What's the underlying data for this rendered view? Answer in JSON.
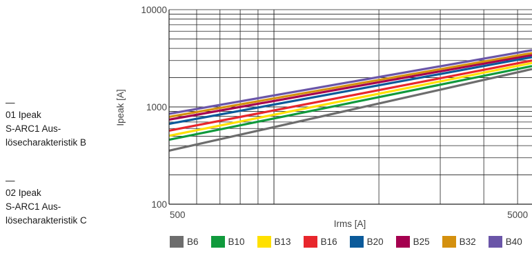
{
  "captions": [
    {
      "dash": "—",
      "lines": [
        "01 Ipeak",
        "S-ARC1 Aus-",
        "lösecharakteristik B"
      ]
    },
    {
      "dash": "—",
      "lines": [
        "02 Ipeak",
        "S-ARC1 Aus-",
        "lösecharakteristik C"
      ]
    }
  ],
  "chart_data": {
    "type": "line",
    "xlabel": "Irms [A]",
    "ylabel": "Ipeak [A]",
    "xscale": "log",
    "yscale": "log",
    "xlim": [
      500,
      5500
    ],
    "ylim": [
      100,
      10000
    ],
    "x_ticks": [
      {
        "value": 500,
        "label": "500"
      },
      {
        "value": 5000,
        "label": "5000"
      }
    ],
    "y_ticks": [
      {
        "value": 10000,
        "label": "10000"
      },
      {
        "value": 1000,
        "label": "1000"
      },
      {
        "value": 100,
        "label": "100"
      }
    ],
    "grid": true,
    "legend_position": "bottom",
    "series": [
      {
        "name": "B6",
        "color": "#6d6d6d",
        "x": [
          500,
          5500
        ],
        "y": [
          355,
          2450
        ]
      },
      {
        "name": "B10",
        "color": "#109a3c",
        "x": [
          500,
          5500
        ],
        "y": [
          460,
          2630
        ]
      },
      {
        "name": "B13",
        "color": "#ffe000",
        "x": [
          500,
          5500
        ],
        "y": [
          505,
          2830
        ]
      },
      {
        "name": "B16",
        "color": "#e8262c",
        "x": [
          500,
          5500
        ],
        "y": [
          570,
          3000
        ]
      },
      {
        "name": "B20",
        "color": "#0b5a9a",
        "x": [
          500,
          5500
        ],
        "y": [
          670,
          3250
        ]
      },
      {
        "name": "B25",
        "color": "#a5004f",
        "x": [
          500,
          5500
        ],
        "y": [
          740,
          3420
        ]
      },
      {
        "name": "B32",
        "color": "#d4900e",
        "x": [
          500,
          5500
        ],
        "y": [
          790,
          3580
        ]
      },
      {
        "name": "B40",
        "color": "#6a55a8",
        "x": [
          500,
          5500
        ],
        "y": [
          850,
          3830
        ]
      }
    ]
  }
}
